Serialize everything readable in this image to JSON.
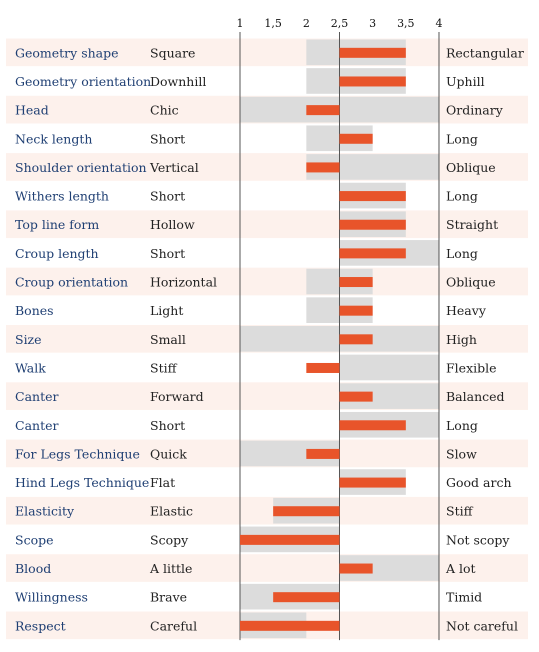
{
  "chart_data": {
    "type": "bar",
    "orientation": "horizontal",
    "title": "",
    "xlim": [
      1,
      4
    ],
    "ticks": [
      {
        "value": 1,
        "label": "1"
      },
      {
        "value": 1.5,
        "label": "1,5"
      },
      {
        "value": 2,
        "label": "2"
      },
      {
        "value": 2.5,
        "label": "2,5"
      },
      {
        "value": 3,
        "label": "3"
      },
      {
        "value": 3.5,
        "label": "3,5"
      },
      {
        "value": 4,
        "label": "4"
      }
    ],
    "baseline": 2.5,
    "colors": {
      "bar": "#e8542a",
      "range": "#dcdcdc",
      "row_alt": "#fdf1ec",
      "trait_text": "#1f3f73"
    },
    "rows": [
      {
        "trait": "Geometry shape",
        "low": "Square",
        "high": "Rectangular",
        "value": 3.5,
        "range": [
          2,
          3.5
        ]
      },
      {
        "trait": "Geometry orientation",
        "low": "Downhill",
        "high": "Uphill",
        "value": 3.5,
        "range": [
          2,
          3.5
        ]
      },
      {
        "trait": "Head",
        "low": "Chic",
        "high": "Ordinary",
        "value": 2,
        "range": [
          1,
          4
        ]
      },
      {
        "trait": "Neck length",
        "low": "Short",
        "high": "Long",
        "value": 3,
        "range": [
          2,
          3
        ]
      },
      {
        "trait": "Shoulder orientation",
        "low": "Vertical",
        "high": "Oblique",
        "value": 2,
        "range": [
          2,
          4
        ]
      },
      {
        "trait": "Withers length",
        "low": "Short",
        "high": "Long",
        "value": 3.5,
        "range": [
          2.5,
          3.5
        ]
      },
      {
        "trait": "Top line form",
        "low": "Hollow",
        "high": "Straight",
        "value": 3.5,
        "range": [
          2.5,
          3.5
        ]
      },
      {
        "trait": "Croup length",
        "low": "Short",
        "high": "Long",
        "value": 3.5,
        "range": [
          2.5,
          4
        ]
      },
      {
        "trait": "Croup orientation",
        "low": "Horizontal",
        "high": "Oblique",
        "value": 3,
        "range": [
          2,
          3
        ]
      },
      {
        "trait": "Bones",
        "low": "Light",
        "high": "Heavy",
        "value": 3,
        "range": [
          2,
          3
        ]
      },
      {
        "trait": "Size",
        "low": "Small",
        "high": "High",
        "value": 3,
        "range": [
          1,
          4
        ]
      },
      {
        "trait": "Walk",
        "low": "Stiff",
        "high": "Flexible",
        "value": 2,
        "range": [
          2.5,
          4
        ]
      },
      {
        "trait": "Canter",
        "low": "Forward",
        "high": "Balanced",
        "value": 3,
        "range": [
          2.5,
          4
        ]
      },
      {
        "trait": "Canter",
        "low": "Short",
        "high": "Long",
        "value": 3.5,
        "range": [
          2.5,
          4
        ]
      },
      {
        "trait": "For Legs Technique",
        "low": "Quick",
        "high": "Slow",
        "value": 2,
        "range": [
          1,
          2.5
        ]
      },
      {
        "trait": "Hind Legs Technique",
        "low": "Flat",
        "high": "Good arch",
        "value": 3.5,
        "range": [
          2.5,
          3.5
        ]
      },
      {
        "trait": "Elasticity",
        "low": "Elastic",
        "high": "Stiff",
        "value": 1.5,
        "range": [
          1.5,
          2.5
        ]
      },
      {
        "trait": "Scope",
        "low": "Scopy",
        "high": "Not scopy",
        "value": 1,
        "range": [
          1,
          2.5
        ]
      },
      {
        "trait": "Blood",
        "low": "A little",
        "high": "A lot",
        "value": 3,
        "range": [
          2.5,
          4
        ]
      },
      {
        "trait": "Willingness",
        "low": "Brave",
        "high": "Timid",
        "value": 1.5,
        "range": [
          1,
          2.5
        ]
      },
      {
        "trait": "Respect",
        "low": "Careful",
        "high": "Not careful",
        "value": 1,
        "range": [
          1,
          2
        ]
      }
    ]
  }
}
